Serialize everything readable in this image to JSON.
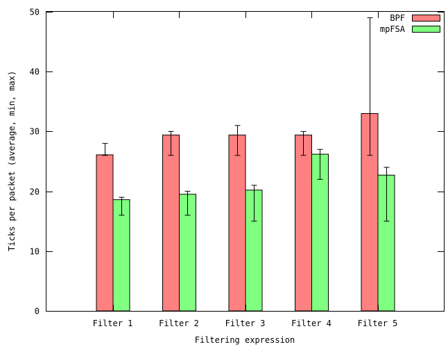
{
  "chart_data": {
    "type": "bar",
    "title": "",
    "xlabel": "Filtering expression",
    "ylabel": "Ticks per packet (average, min, max)",
    "categories": [
      "Filter 1",
      "Filter 2",
      "Filter 3",
      "Filter 4",
      "Filter 5"
    ],
    "ylim": [
      0,
      50
    ],
    "yticks": [
      0,
      10,
      20,
      30,
      40,
      50
    ],
    "grid": false,
    "legend_position": "top-right",
    "series": [
      {
        "name": "BPF",
        "color": "#ff8080",
        "values": [
          26.1,
          29.4,
          29.4,
          29.4,
          33.0
        ],
        "min": [
          26.0,
          26.0,
          26.0,
          26.0,
          26.0
        ],
        "max": [
          28.0,
          30.0,
          31.0,
          30.0,
          49.0
        ]
      },
      {
        "name": "mpFSA",
        "color": "#80ff80",
        "values": [
          18.6,
          19.5,
          20.2,
          26.2,
          22.7
        ],
        "min": [
          16.0,
          16.0,
          15.0,
          22.0,
          15.0
        ],
        "max": [
          19.0,
          20.0,
          21.0,
          27.0,
          24.0
        ]
      }
    ]
  }
}
